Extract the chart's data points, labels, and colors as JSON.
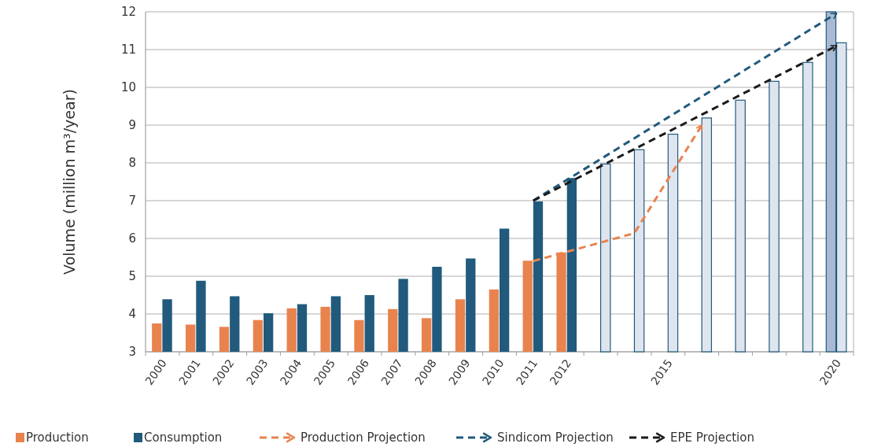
{
  "chart_data": {
    "type": "bar",
    "ylabel": "Volume (million m³/year)",
    "categories": [
      "2000",
      "2001",
      "2002",
      "2003",
      "2004",
      "2005",
      "2006",
      "2007",
      "2008",
      "2009",
      "2010",
      "2011",
      "2012",
      null,
      null,
      "2015",
      null,
      null,
      null,
      null,
      "2020"
    ],
    "series": [
      {
        "name": "Production",
        "color": "#e8834e",
        "colors": [
          "#e8834e",
          "#e8834e",
          "#e8834e",
          "#e8834e",
          "#e8834e",
          "#e8834e",
          "#e8834e",
          "#e8834e",
          "#e8834e",
          "#e8834e",
          "#e8834e",
          "#e8834e",
          "#e8834e",
          null,
          null,
          null,
          null,
          null,
          null,
          null,
          "#aab9d3"
        ],
        "values": [
          3.75,
          3.72,
          3.66,
          3.84,
          4.15,
          4.19,
          3.84,
          4.13,
          3.89,
          4.39,
          4.65,
          5.41,
          5.63,
          null,
          null,
          null,
          null,
          null,
          null,
          null,
          12
        ]
      },
      {
        "name": "Consumption",
        "color": "#215a7c",
        "colors": [
          "#215a7c",
          "#215a7c",
          "#215a7c",
          "#215a7c",
          "#215a7c",
          "#215a7c",
          "#215a7c",
          "#215a7c",
          "#215a7c",
          "#215a7c",
          "#215a7c",
          "#215a7c",
          "#215a7c",
          "#dfe5ee",
          "#dfe5ee",
          "#dfe5ee",
          "#dfe5ee",
          "#dfe5ee",
          "#dfe5ee",
          "#dfe5ee",
          "#dfe5ee"
        ],
        "values": [
          4.39,
          4.88,
          4.47,
          4.02,
          4.26,
          4.47,
          4.5,
          4.93,
          5.25,
          5.47,
          6.26,
          6.98,
          7.6,
          7.97,
          8.35,
          8.76,
          9.19,
          9.66,
          10.16,
          10.66,
          11.18
        ]
      },
      {
        "name": "Production Projection",
        "type": "line",
        "line_style": "dashed",
        "color": "#e8834e",
        "values": [
          null,
          null,
          null,
          null,
          null,
          null,
          null,
          null,
          null,
          null,
          null,
          5.4,
          null,
          null,
          6.14,
          null,
          9.0,
          null,
          null,
          null,
          null
        ]
      },
      {
        "name": "Sindicom Projection",
        "type": "line",
        "line_style": "dashed",
        "color": "#215a7c",
        "values": [
          null,
          null,
          null,
          null,
          null,
          null,
          null,
          null,
          null,
          null,
          null,
          7.0,
          null,
          null,
          null,
          null,
          null,
          null,
          null,
          null,
          11.96
        ]
      },
      {
        "name": "EPE Projection",
        "type": "line",
        "line_style": "dashed",
        "color": "#1a1a1a",
        "values": [
          null,
          null,
          null,
          null,
          null,
          null,
          null,
          null,
          null,
          null,
          null,
          7.0,
          null,
          null,
          null,
          null,
          null,
          null,
          null,
          null,
          11.1
        ]
      }
    ],
    "ylim": [
      3,
      12
    ],
    "yticks": [
      3,
      4,
      5,
      6,
      7,
      8,
      9,
      10,
      11,
      12
    ],
    "grid": "y",
    "legend": "bottom"
  }
}
